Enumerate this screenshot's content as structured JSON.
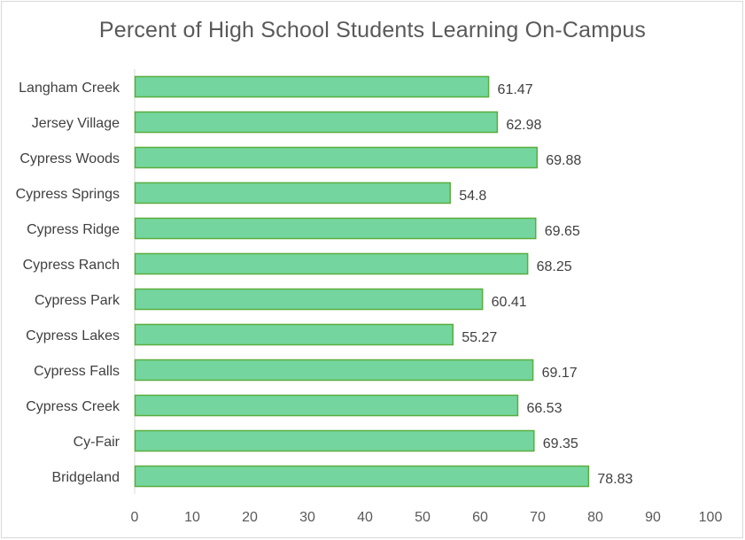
{
  "chart_data": {
    "type": "bar",
    "orientation": "horizontal",
    "title": "Percent of High School Students Learning On-Campus",
    "xlabel": "",
    "ylabel": "",
    "categories": [
      "Langham Creek",
      "Jersey Village",
      "Cypress Woods",
      "Cypress Springs",
      "Cypress Ridge",
      "Cypress Ranch",
      "Cypress Park",
      "Cypress Lakes",
      "Cypress Falls",
      "Cypress Creek",
      "Cy-Fair",
      "Bridgeland"
    ],
    "values": [
      61.47,
      62.98,
      69.88,
      54.8,
      69.65,
      68.25,
      60.41,
      55.27,
      69.17,
      66.53,
      69.35,
      78.83
    ],
    "value_labels": [
      "61.47",
      "62.98",
      "69.88",
      "54.8",
      "69.65",
      "68.25",
      "60.41",
      "55.27",
      "69.17",
      "66.53",
      "69.35",
      "78.83"
    ],
    "xlim": [
      0,
      100
    ],
    "x_ticks": [
      "0",
      "10",
      "20",
      "30",
      "40",
      "50",
      "60",
      "70",
      "80",
      "90",
      "100"
    ],
    "grid": false,
    "legend": "none",
    "colors": {
      "bar_fill": "#74d69e",
      "bar_stroke": "#5aad3f",
      "axis_line": "#d9d9d9"
    }
  }
}
